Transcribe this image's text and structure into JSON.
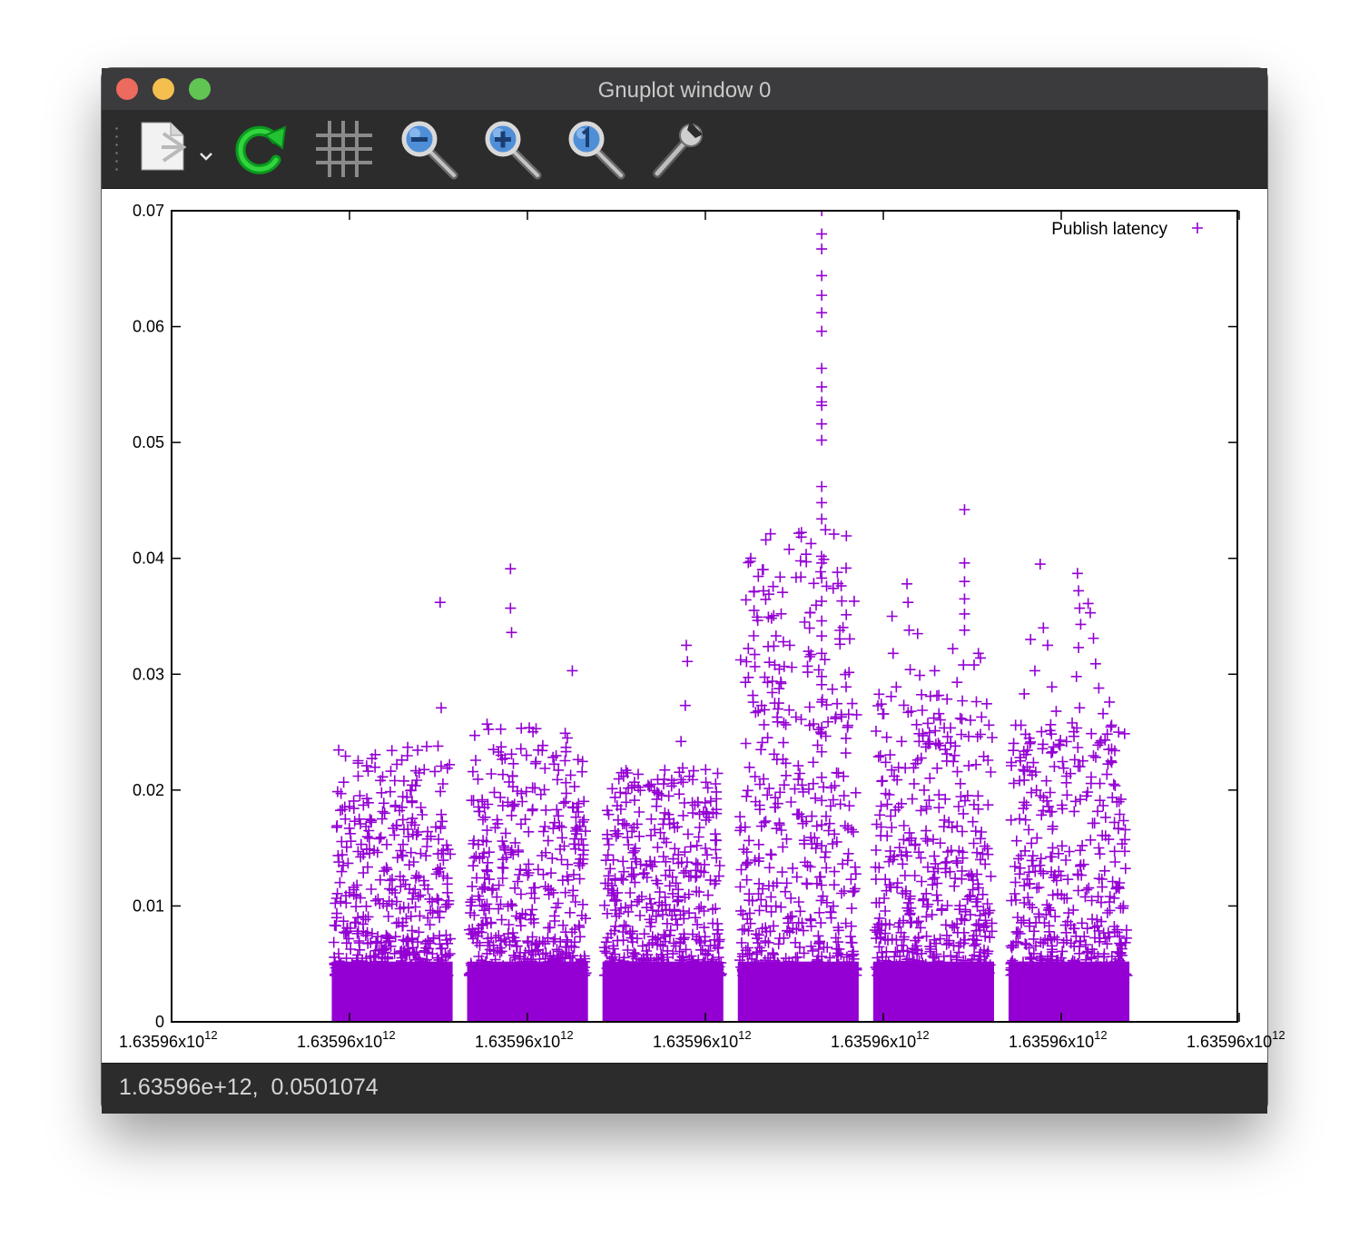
{
  "window": {
    "title": "Gnuplot window 0"
  },
  "toolbar": {
    "items": [
      {
        "id": "export",
        "icon": "export-icon"
      },
      {
        "id": "replot",
        "icon": "replot-icon"
      },
      {
        "id": "grid",
        "icon": "grid-icon"
      },
      {
        "id": "zoom-out",
        "icon": "zoom-out-icon"
      },
      {
        "id": "zoom-in",
        "icon": "zoom-in-icon"
      },
      {
        "id": "zoom-reset",
        "icon": "zoom-reset-icon"
      },
      {
        "id": "settings",
        "icon": "wrench-icon"
      }
    ]
  },
  "status": {
    "coords": "1.63596e+12,  0.0501074"
  },
  "chart_data": {
    "type": "scatter",
    "title": "",
    "xlabel": "",
    "ylabel": "",
    "legend": {
      "entry": "Publish latency",
      "position": "top-right"
    },
    "marker": "plus",
    "color": "#9400d3",
    "grid": false,
    "x_ticks": [
      {
        "mantissa": "1.63596x10",
        "exp": "12"
      },
      {
        "mantissa": "1.63596x10",
        "exp": "12"
      },
      {
        "mantissa": "1.63596x10",
        "exp": "12"
      },
      {
        "mantissa": "1.63596x10",
        "exp": "12"
      },
      {
        "mantissa": "1.63596x10",
        "exp": "12"
      },
      {
        "mantissa": "1.63596x10",
        "exp": "12"
      },
      {
        "mantissa": "1.63596x10",
        "exp": "12"
      }
    ],
    "y_ticks": [
      "0",
      "0.01",
      "0.02",
      "0.03",
      "0.04",
      "0.05",
      "0.06",
      "0.07"
    ],
    "ylim": [
      0,
      0.07
    ],
    "series": [
      {
        "name": "Publish latency",
        "clusters": [
          {
            "x_start": 0.152,
            "x_end": 0.262,
            "max_latency": 0.0362
          },
          {
            "x_start": 0.279,
            "x_end": 0.389,
            "max_latency": 0.0391
          },
          {
            "x_start": 0.406,
            "x_end": 0.516,
            "max_latency": 0.0326
          },
          {
            "x_start": 0.533,
            "x_end": 0.643,
            "max_latency": 0.07
          },
          {
            "x_start": 0.66,
            "x_end": 0.77,
            "max_latency": 0.0442
          },
          {
            "x_start": 0.787,
            "x_end": 0.897,
            "max_latency": 0.0395
          }
        ],
        "outliers": [
          [
            0.159,
            0.0197
          ],
          [
            0.163,
            0.0175
          ],
          [
            0.161,
            0.0135
          ],
          [
            0.171,
            0.0114
          ],
          [
            0.18,
            0.0187
          ],
          [
            0.183,
            0.0221
          ],
          [
            0.185,
            0.0165
          ],
          [
            0.19,
            0.0148
          ],
          [
            0.195,
            0.0158
          ],
          [
            0.205,
            0.0122
          ],
          [
            0.218,
            0.0166
          ],
          [
            0.232,
            0.0125
          ],
          [
            0.247,
            0.0216
          ],
          [
            0.252,
            0.0362
          ],
          [
            0.253,
            0.0271
          ],
          [
            0.254,
            0.0173
          ],
          [
            0.25,
            0.0145
          ],
          [
            0.245,
            0.0094
          ],
          [
            0.284,
            0.0092
          ],
          [
            0.289,
            0.0141
          ],
          [
            0.296,
            0.0257
          ],
          [
            0.3,
            0.0214
          ],
          [
            0.302,
            0.0235
          ],
          [
            0.318,
            0.0391
          ],
          [
            0.318,
            0.0357
          ],
          [
            0.319,
            0.0336
          ],
          [
            0.319,
            0.0231
          ],
          [
            0.319,
            0.0178
          ],
          [
            0.32,
            0.0212
          ],
          [
            0.333,
            0.023
          ],
          [
            0.335,
            0.0164
          ],
          [
            0.342,
            0.0253
          ],
          [
            0.351,
            0.0146
          ],
          [
            0.362,
            0.0209
          ],
          [
            0.366,
            0.0168
          ],
          [
            0.376,
            0.0303
          ],
          [
            0.378,
            0.0203
          ],
          [
            0.383,
            0.0169
          ],
          [
            0.382,
            0.0137
          ],
          [
            0.413,
            0.0109
          ],
          [
            0.422,
            0.0215
          ],
          [
            0.421,
            0.0198
          ],
          [
            0.425,
            0.0171
          ],
          [
            0.433,
            0.0146
          ],
          [
            0.44,
            0.0136
          ],
          [
            0.45,
            0.0205
          ],
          [
            0.455,
            0.0186
          ],
          [
            0.462,
            0.0158
          ],
          [
            0.47,
            0.0125
          ],
          [
            0.478,
            0.0242
          ],
          [
            0.483,
            0.0325
          ],
          [
            0.484,
            0.0311
          ],
          [
            0.482,
            0.0273
          ],
          [
            0.478,
            0.0209
          ],
          [
            0.48,
            0.0178
          ],
          [
            0.489,
            0.0209
          ],
          [
            0.491,
            0.0187
          ],
          [
            0.487,
            0.0151
          ],
          [
            0.495,
            0.0112
          ],
          [
            0.54,
            0.0137
          ],
          [
            0.548,
            0.019
          ],
          [
            0.551,
            0.0153
          ],
          [
            0.556,
            0.0172
          ],
          [
            0.561,
            0.0133
          ],
          [
            0.566,
            0.0308
          ],
          [
            0.569,
            0.027
          ],
          [
            0.572,
            0.0292
          ],
          [
            0.574,
            0.0241
          ],
          [
            0.58,
            0.0325
          ],
          [
            0.582,
            0.0306
          ],
          [
            0.588,
            0.0221
          ],
          [
            0.594,
            0.0345
          ],
          [
            0.599,
            0.0353
          ],
          [
            0.6,
            0.0317
          ],
          [
            0.602,
            0.0224
          ],
          [
            0.604,
            0.0193
          ],
          [
            0.609,
            0.025
          ],
          [
            0.61,
            0.07
          ],
          [
            0.61,
            0.068
          ],
          [
            0.61,
            0.0667
          ],
          [
            0.61,
            0.0644
          ],
          [
            0.61,
            0.0627
          ],
          [
            0.61,
            0.0612
          ],
          [
            0.61,
            0.0596
          ],
          [
            0.61,
            0.0564
          ],
          [
            0.61,
            0.0548
          ],
          [
            0.61,
            0.0535
          ],
          [
            0.61,
            0.0532
          ],
          [
            0.61,
            0.0516
          ],
          [
            0.61,
            0.0502
          ],
          [
            0.61,
            0.0462
          ],
          [
            0.61,
            0.0448
          ],
          [
            0.61,
            0.0434
          ],
          [
            0.61,
            0.0396
          ],
          [
            0.61,
            0.0383
          ],
          [
            0.61,
            0.0363
          ],
          [
            0.61,
            0.0346
          ],
          [
            0.61,
            0.0333
          ],
          [
            0.61,
            0.0318
          ],
          [
            0.61,
            0.0298
          ],
          [
            0.61,
            0.0276
          ],
          [
            0.61,
            0.0254
          ],
          [
            0.61,
            0.0233
          ],
          [
            0.61,
            0.0211
          ],
          [
            0.61,
            0.0191
          ],
          [
            0.61,
            0.017
          ],
          [
            0.61,
            0.0152
          ],
          [
            0.619,
            0.0202
          ],
          [
            0.622,
            0.0162
          ],
          [
            0.67,
            0.0197
          ],
          [
            0.676,
            0.035
          ],
          [
            0.677,
            0.0318
          ],
          [
            0.68,
            0.0289
          ],
          [
            0.678,
            0.0212
          ],
          [
            0.685,
            0.0242
          ],
          [
            0.69,
            0.0378
          ],
          [
            0.691,
            0.0362
          ],
          [
            0.692,
            0.0338
          ],
          [
            0.693,
            0.0304
          ],
          [
            0.694,
            0.0268
          ],
          [
            0.7,
            0.0335
          ],
          [
            0.702,
            0.0299
          ],
          [
            0.705,
            0.0247
          ],
          [
            0.712,
            0.0281
          ],
          [
            0.716,
            0.0303
          ],
          [
            0.72,
            0.0266
          ],
          [
            0.726,
            0.0235
          ],
          [
            0.733,
            0.0322
          ],
          [
            0.737,
            0.0293
          ],
          [
            0.74,
            0.0262
          ],
          [
            0.744,
            0.0442
          ],
          [
            0.744,
            0.0396
          ],
          [
            0.744,
            0.038
          ],
          [
            0.744,
            0.0365
          ],
          [
            0.744,
            0.0352
          ],
          [
            0.744,
            0.0338
          ],
          [
            0.743,
            0.0308
          ],
          [
            0.742,
            0.0277
          ],
          [
            0.741,
            0.0248
          ],
          [
            0.748,
            0.0221
          ],
          [
            0.753,
            0.0308
          ],
          [
            0.757,
            0.0318
          ],
          [
            0.759,
            0.0314
          ],
          [
            0.76,
            0.0263
          ],
          [
            0.762,
            0.0229
          ],
          [
            0.797,
            0.0256
          ],
          [
            0.8,
            0.0283
          ],
          [
            0.806,
            0.033
          ],
          [
            0.81,
            0.0303
          ],
          [
            0.815,
            0.0395
          ],
          [
            0.818,
            0.034
          ],
          [
            0.822,
            0.0325
          ],
          [
            0.826,
            0.0289
          ],
          [
            0.83,
            0.0268
          ],
          [
            0.834,
            0.0243
          ],
          [
            0.845,
            0.0258
          ],
          [
            0.85,
            0.0387
          ],
          [
            0.851,
            0.0372
          ],
          [
            0.852,
            0.0357
          ],
          [
            0.853,
            0.0343
          ],
          [
            0.851,
            0.0323
          ],
          [
            0.849,
            0.0298
          ],
          [
            0.852,
            0.0271
          ],
          [
            0.86,
            0.0361
          ],
          [
            0.862,
            0.0353
          ],
          [
            0.865,
            0.0331
          ],
          [
            0.867,
            0.0309
          ],
          [
            0.87,
            0.0288
          ],
          [
            0.874,
            0.0266
          ],
          [
            0.88,
            0.0276
          ],
          [
            0.882,
            0.0256
          ],
          [
            0.885,
            0.0234
          ],
          [
            0.884,
            0.0205
          ],
          [
            0.889,
            0.019
          ]
        ]
      }
    ]
  }
}
